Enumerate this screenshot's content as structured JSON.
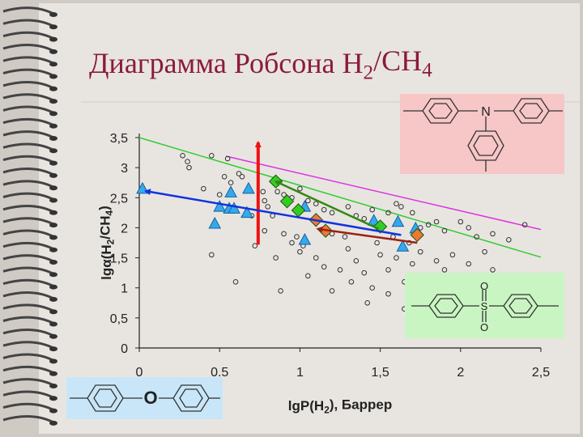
{
  "chart_data": {
    "type": "scatter",
    "title": [
      "Диаграмма Робсона H",
      "2",
      "/CH",
      "4"
    ],
    "x_label": [
      "lgP(H",
      "2",
      "), Баррер"
    ],
    "y_label": [
      "lgα(H",
      "2",
      "/CH",
      "4",
      ")"
    ],
    "annotations": [
      "N",
      "O",
      "S",
      "O",
      "O"
    ],
    "xlim": [
      0,
      2.5
    ],
    "ylim": [
      0,
      3.5
    ],
    "xticks": [
      0,
      {
        "value": 0.5,
        "label": "0.5"
      },
      1,
      {
        "value": 1.5,
        "label": "1,5"
      },
      2,
      {
        "value": 2.5,
        "label": "2,5"
      }
    ],
    "yticks": [
      0,
      {
        "value": 0.5,
        "label": "0,5"
      },
      1,
      {
        "value": 1.5,
        "label": "1,5"
      },
      2,
      {
        "value": 2.5,
        "label": "2,5"
      },
      3,
      {
        "value": 3.5,
        "label": "3,5"
      }
    ],
    "grid": false,
    "series": [
      {
        "style": "line",
        "color": "#33cc33",
        "x": [
          0,
          2.5
        ],
        "y": [
          3.5,
          1.51
        ]
      },
      {
        "style": "line",
        "color": "#dd33dd",
        "x": [
          0.54,
          2.5
        ],
        "y": [
          3.19,
          1.97
        ]
      },
      {
        "style": "circle",
        "color": "#333333",
        "x": [
          0.27,
          0.3,
          0.31,
          0.45,
          0.55,
          0.53,
          0.62,
          0.64,
          0.57,
          0.4,
          0.5,
          0.77,
          0.78,
          0.8,
          0.83,
          0.86,
          0.9,
          0.95,
          1.0,
          1.05,
          1.1,
          1.15,
          1.2,
          1.3,
          1.35,
          1.4,
          1.45,
          1.55,
          1.6,
          1.63,
          1.7,
          1.75,
          1.8,
          1.85,
          1.9,
          2.0,
          2.05,
          2.1,
          2.2,
          2.3,
          2.4,
          0.45,
          0.6,
          0.72,
          0.85,
          0.9,
          0.95,
          0.88,
          1.0,
          1.05,
          1.1,
          1.15,
          1.2,
          1.25,
          1.3,
          1.35,
          1.4,
          1.45,
          1.5,
          1.55,
          1.6,
          1.65,
          1.7,
          1.75,
          1.8,
          1.85,
          1.9,
          1.95,
          2.0,
          2.05,
          2.1,
          2.15,
          2.2,
          2.3,
          1.2,
          1.32,
          1.42,
          1.55,
          1.65,
          1.28,
          1.48,
          1.58,
          1.68,
          0.98,
          1.02,
          0.78,
          0.7
        ],
        "y": [
          3.2,
          3.1,
          3.0,
          3.2,
          3.15,
          2.85,
          2.9,
          2.85,
          2.75,
          2.65,
          2.55,
          2.6,
          2.45,
          2.35,
          2.2,
          2.6,
          2.55,
          2.5,
          2.65,
          2.45,
          2.4,
          2.3,
          2.25,
          2.35,
          2.2,
          2.15,
          2.3,
          2.25,
          2.4,
          2.35,
          2.25,
          2.0,
          2.05,
          2.1,
          1.95,
          2.1,
          2.0,
          1.85,
          1.9,
          1.8,
          2.05,
          1.55,
          1.1,
          1.7,
          1.5,
          1.9,
          1.75,
          0.95,
          1.6,
          1.2,
          1.5,
          1.35,
          1.9,
          1.3,
          1.65,
          1.45,
          1.25,
          1.0,
          1.55,
          1.3,
          1.5,
          1.1,
          1.4,
          1.6,
          1.2,
          1.45,
          1.3,
          1.55,
          1.2,
          1.4,
          1.15,
          1.6,
          1.3,
          1.05,
          0.95,
          1.1,
          0.75,
          0.9,
          0.65,
          1.85,
          1.75,
          1.85,
          1.75,
          1.85,
          1.7,
          1.95,
          2.2
        ]
      },
      {
        "style": "triangle",
        "color": "#33aaee",
        "x": [
          0.02,
          0.57,
          0.5,
          0.56,
          0.59,
          0.47,
          0.68,
          0.67,
          1.03,
          1.03,
          1.46,
          1.61,
          1.72,
          1.64
        ],
        "y": [
          2.64,
          2.58,
          2.34,
          2.31,
          2.31,
          2.06,
          2.64,
          2.24,
          2.34,
          1.79,
          2.11,
          2.09,
          1.98,
          1.68
        ]
      },
      {
        "style": "diamond",
        "color": "#33cc22",
        "x": [
          0.85,
          0.92,
          0.99,
          1.5
        ],
        "y": [
          2.77,
          2.44,
          2.29,
          2.02
        ]
      },
      {
        "style": "diamond",
        "color": "#ee7733",
        "x": [
          1.1,
          1.16,
          1.73
        ],
        "y": [
          2.13,
          1.95,
          1.88
        ]
      },
      {
        "style": "arrow",
        "color": "#ee1111",
        "x": [
          0.74,
          0.74
        ],
        "y": [
          1.72,
          3.42
        ]
      },
      {
        "style": "arrow",
        "color": "#1133dd",
        "x": [
          1.63,
          0.04
        ],
        "y": [
          1.88,
          2.61
        ]
      },
      {
        "style": "arrow",
        "color": "#338811",
        "x": [
          1.49,
          0.85
        ],
        "y": [
          1.98,
          2.77
        ]
      },
      {
        "style": "arrow",
        "color": "#992211",
        "x": [
          1.73,
          1.11
        ],
        "y": [
          1.75,
          1.98
        ]
      }
    ]
  }
}
